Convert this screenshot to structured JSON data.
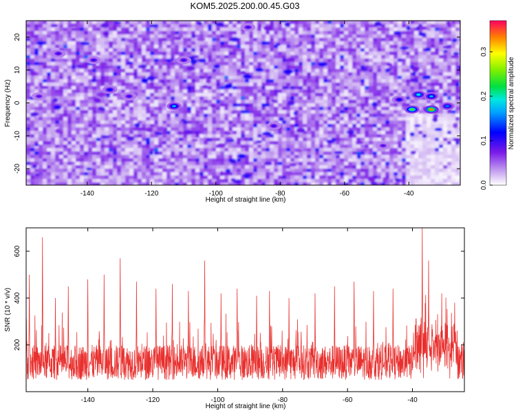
{
  "title": "KOM5.2025.200.00.45.G03",
  "chart_data": [
    {
      "type": "heatmap",
      "xlabel": "Height of straight line (km)",
      "ylabel": "Frequency (Hz)",
      "xlim": [
        -159,
        -24
      ],
      "ylim": [
        -25,
        25
      ],
      "xticks": [
        -140,
        -120,
        -100,
        -80,
        -60,
        -40
      ],
      "yticks": [
        -20,
        -10,
        0,
        10,
        20
      ],
      "colorbar": {
        "label": "Normalized spectral amplitude",
        "range": [
          0.0,
          0.37
        ],
        "ticks": [
          0.0,
          0.1,
          0.2,
          0.3
        ]
      },
      "hotspots": [
        {
          "x": -33,
          "y": -2,
          "value": 0.33
        },
        {
          "x": -39,
          "y": -2,
          "value": 0.24
        },
        {
          "x": -37,
          "y": 2.5,
          "value": 0.19
        },
        {
          "x": -33,
          "y": 2,
          "value": 0.17
        },
        {
          "x": -28,
          "y": -1,
          "value": 0.15
        },
        {
          "x": -43,
          "y": 1,
          "value": 0.12
        },
        {
          "x": -113,
          "y": -1,
          "value": 0.17
        },
        {
          "x": -133,
          "y": 4,
          "value": 0.12
        },
        {
          "x": -127,
          "y": 2,
          "value": 0.1
        },
        {
          "x": -90,
          "y": 23,
          "value": 0.1
        },
        {
          "x": -82,
          "y": -7,
          "value": 0.1
        },
        {
          "x": -110,
          "y": 13,
          "value": 0.1
        },
        {
          "x": -149,
          "y": 15,
          "value": 0.1
        },
        {
          "x": -138,
          "y": 13,
          "value": 0.1
        },
        {
          "x": -48,
          "y": -13,
          "value": 0.09
        },
        {
          "x": -155,
          "y": 2,
          "value": 0.09
        }
      ],
      "background_level": 0.04
    },
    {
      "type": "line",
      "xlabel": "Height of straight line (km)",
      "ylabel": "SNR (10 * v/v)",
      "xlim": [
        -159,
        -24
      ],
      "ylim": [
        0,
        700
      ],
      "xticks": [
        -140,
        -120,
        -100,
        -80,
        -60,
        -40
      ],
      "yticks": [
        200,
        400,
        600
      ],
      "series_color": "#e8302e",
      "baseline_range": [
        50,
        200
      ],
      "peaks": [
        {
          "x": -154,
          "y": 660
        },
        {
          "x": -158,
          "y": 500
        },
        {
          "x": -150,
          "y": 400
        },
        {
          "x": -146,
          "y": 450
        },
        {
          "x": -140,
          "y": 480
        },
        {
          "x": -135,
          "y": 500
        },
        {
          "x": -130,
          "y": 570
        },
        {
          "x": -125,
          "y": 470
        },
        {
          "x": -119,
          "y": 440
        },
        {
          "x": -114,
          "y": 460
        },
        {
          "x": -109,
          "y": 430
        },
        {
          "x": -104,
          "y": 560
        },
        {
          "x": -99,
          "y": 420
        },
        {
          "x": -94,
          "y": 440
        },
        {
          "x": -88,
          "y": 410
        },
        {
          "x": -84,
          "y": 430
        },
        {
          "x": -78,
          "y": 400
        },
        {
          "x": -70,
          "y": 420
        },
        {
          "x": -64,
          "y": 450
        },
        {
          "x": -58,
          "y": 470
        },
        {
          "x": -52,
          "y": 430
        },
        {
          "x": -46,
          "y": 440
        },
        {
          "x": -37,
          "y": 700
        },
        {
          "x": -35,
          "y": 560
        },
        {
          "x": -31,
          "y": 420
        },
        {
          "x": -27,
          "y": 380
        }
      ]
    }
  ]
}
